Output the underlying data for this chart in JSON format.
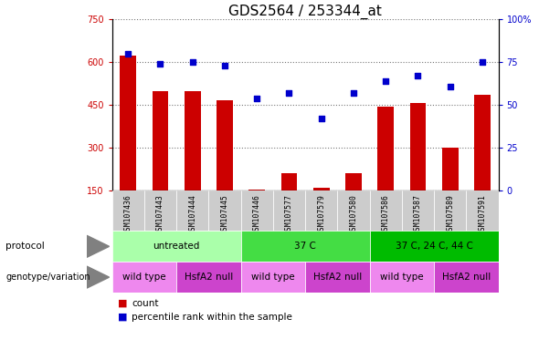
{
  "title": "GDS2564 / 253344_at",
  "samples": [
    "GSM107436",
    "GSM107443",
    "GSM107444",
    "GSM107445",
    "GSM107446",
    "GSM107577",
    "GSM107579",
    "GSM107580",
    "GSM107586",
    "GSM107587",
    "GSM107589",
    "GSM107591"
  ],
  "counts": [
    623,
    497,
    497,
    465,
    155,
    213,
    160,
    213,
    443,
    458,
    302,
    487
  ],
  "percentiles": [
    80,
    74,
    75,
    73,
    54,
    57,
    42,
    57,
    64,
    67,
    61,
    75
  ],
  "ylim_left": [
    150,
    750
  ],
  "ylim_right": [
    0,
    100
  ],
  "yticks_left": [
    150,
    300,
    450,
    600,
    750
  ],
  "yticks_right": [
    0,
    25,
    50,
    75,
    100
  ],
  "bar_color": "#CC0000",
  "dot_color": "#0000CC",
  "protocol_groups": [
    {
      "label": "untreated",
      "start": 0,
      "end": 4,
      "color": "#AAFFAA"
    },
    {
      "label": "37 C",
      "start": 4,
      "end": 8,
      "color": "#44DD44"
    },
    {
      "label": "37 C, 24 C, 44 C",
      "start": 8,
      "end": 12,
      "color": "#00BB00"
    }
  ],
  "genotype_groups": [
    {
      "label": "wild type",
      "start": 0,
      "end": 2,
      "color": "#EE88EE"
    },
    {
      "label": "HsfA2 null",
      "start": 2,
      "end": 4,
      "color": "#CC44CC"
    },
    {
      "label": "wild type",
      "start": 4,
      "end": 6,
      "color": "#EE88EE"
    },
    {
      "label": "HsfA2 null",
      "start": 6,
      "end": 8,
      "color": "#CC44CC"
    },
    {
      "label": "wild type",
      "start": 8,
      "end": 10,
      "color": "#EE88EE"
    },
    {
      "label": "HsfA2 null",
      "start": 10,
      "end": 12,
      "color": "#CC44CC"
    }
  ],
  "protocol_label": "protocol",
  "genotype_label": "genotype/variation",
  "legend_count": "count",
  "legend_percentile": "percentile rank within the sample",
  "grid_color": "#555555",
  "sample_bg_color": "#CCCCCC",
  "title_fontsize": 11,
  "tick_fontsize": 7,
  "bar_width": 0.5
}
